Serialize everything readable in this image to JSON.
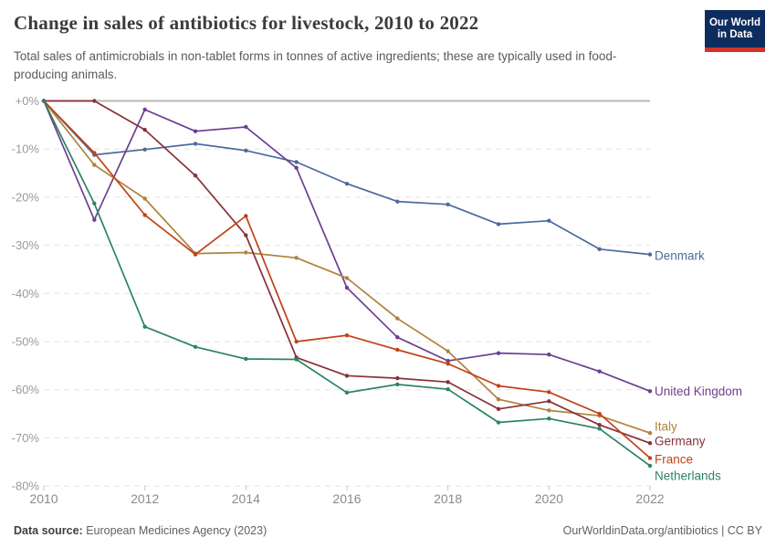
{
  "header": {
    "title": "Change in sales of antibiotics for livestock, 2010 to 2022",
    "subtitle": "Total sales of antimicrobials in non-tablet forms in tonnes of active ingredients; these are typically used in food-producing animals.",
    "logo": {
      "line1": "Our World",
      "line2": "in Data",
      "bg_color": "#0d2d5e",
      "accent_color": "#d0342c"
    }
  },
  "chart_data": {
    "type": "line",
    "title": "Change in sales of antibiotics for livestock, 2010 to 2022",
    "xlabel": "",
    "ylabel": "",
    "x": [
      2010,
      2011,
      2012,
      2013,
      2014,
      2015,
      2016,
      2017,
      2018,
      2019,
      2020,
      2021,
      2022
    ],
    "x_tick_labels": [
      "2010",
      "2012",
      "2014",
      "2016",
      "2018",
      "2020",
      "2022"
    ],
    "y_axis": {
      "tick_labels": [
        "+0%",
        "-10%",
        "-20%",
        "-30%",
        "-40%",
        "-50%",
        "-60%",
        "-70%",
        "-80%"
      ],
      "tick_values": [
        0,
        -10,
        -20,
        -30,
        -40,
        -50,
        -60,
        -70,
        -80
      ],
      "range": [
        -80,
        0
      ],
      "unit": "%"
    },
    "grid": "horizontal dashed, solid zero line",
    "legend_position": "labels at right end of lines",
    "series": [
      {
        "name": "Denmark",
        "color": "#4c6a9c",
        "values": [
          0,
          -11.2,
          -10.1,
          -8.9,
          -10.3,
          -12.7,
          -17.2,
          -20.9,
          -21.5,
          -25.6,
          -24.9,
          -30.8,
          -31.9
        ]
      },
      {
        "name": "United Kingdom",
        "color": "#6d3e91",
        "values": [
          0,
          -24.7,
          -1.8,
          -6.3,
          -5.4,
          -13.9,
          -38.8,
          -49.1,
          -54.0,
          -52.4,
          -52.7,
          -56.2,
          -60.3
        ]
      },
      {
        "name": "Italy",
        "color": "#b0823d",
        "values": [
          0,
          -13.3,
          -20.3,
          -31.7,
          -31.5,
          -32.6,
          -36.8,
          -45.2,
          -52.0,
          -62.0,
          -64.3,
          -65.4,
          -69.0
        ]
      },
      {
        "name": "Germany",
        "color": "#883039",
        "values": [
          0,
          0,
          -6.0,
          -15.5,
          -27.9,
          -53.3,
          -57.1,
          -57.6,
          -58.4,
          -64.0,
          -62.4,
          -67.3,
          -71.1
        ]
      },
      {
        "name": "France",
        "color": "#bf4317",
        "values": [
          0,
          -10.8,
          -23.7,
          -31.9,
          -23.9,
          -50.0,
          -48.7,
          -51.7,
          -54.6,
          -59.2,
          -60.5,
          -65.0,
          -74.2
        ]
      },
      {
        "name": "Netherlands",
        "color": "#2c8465",
        "values": [
          0,
          -21.3,
          -46.9,
          -51.1,
          -53.6,
          -53.7,
          -60.6,
          -58.9,
          -59.9,
          -66.8,
          -66.0,
          -68.1,
          -75.8
        ]
      }
    ]
  },
  "footer": {
    "source_label": "Data source:",
    "source_value": " European Medicines Agency (2023)",
    "citation": "OurWorldinData.org/antibiotics | CC BY"
  }
}
